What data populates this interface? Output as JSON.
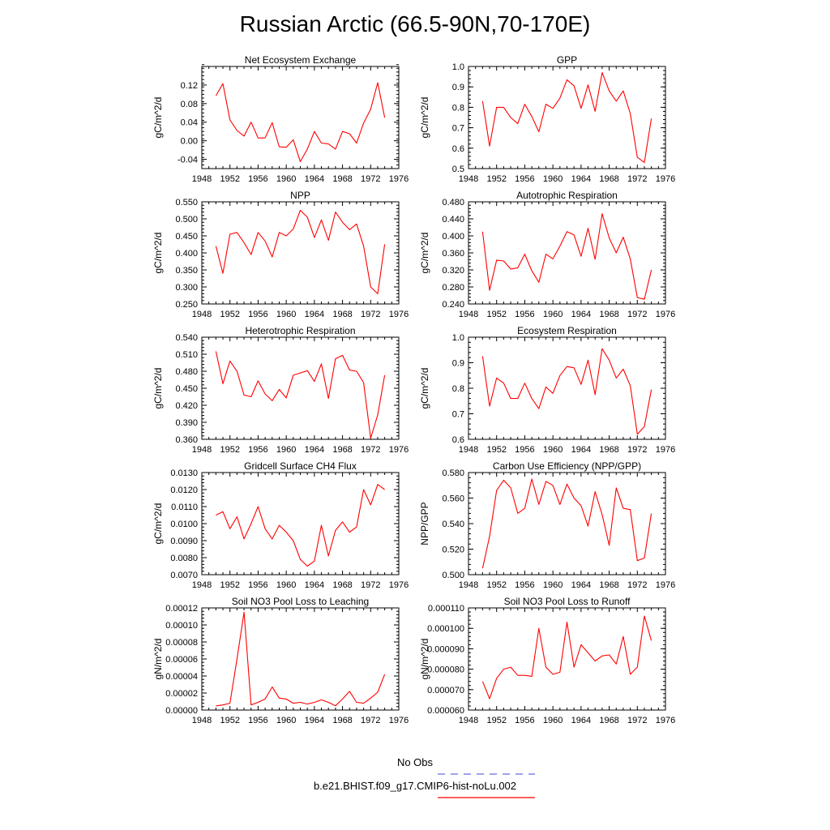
{
  "page": {
    "title": "Russian Arctic (66.5-90N,70-170E)"
  },
  "legend": {
    "entries": [
      {
        "label": "No Obs",
        "color": "#6a6adf",
        "dash": true
      },
      {
        "label": "b.e21.BHIST.f09_g17.CMIP6-hist-noLu.002",
        "color": "#ff0000",
        "dash": false
      }
    ]
  },
  "chart_data": [
    {
      "type": "line",
      "title": "Net Ecosystem Exchange",
      "ylabel": "gC/m^2/d",
      "xlim": [
        1948,
        1976
      ],
      "xticks": [
        "1948",
        "1952",
        "1956",
        "1960",
        "1964",
        "1968",
        "1972",
        "1976"
      ],
      "ylim": [
        -0.06,
        0.16
      ],
      "yticks": [
        "-0.04",
        "0.00",
        "0.04",
        "0.08",
        "0.12"
      ],
      "x": [
        1950,
        1951,
        1952,
        1953,
        1954,
        1955,
        1956,
        1957,
        1958,
        1959,
        1960,
        1961,
        1962,
        1963,
        1964,
        1965,
        1966,
        1967,
        1968,
        1969,
        1970,
        1971,
        1972,
        1973,
        1974
      ],
      "series": [
        {
          "color": "#ff0000",
          "values": [
            0.097,
            0.123,
            0.045,
            0.022,
            0.01,
            0.04,
            0.006,
            0.006,
            0.039,
            -0.013,
            -0.014,
            0.002,
            -0.045,
            -0.018,
            0.02,
            -0.005,
            -0.007,
            -0.018,
            0.02,
            0.015,
            -0.005,
            0.038,
            0.068,
            0.125,
            0.05
          ]
        }
      ]
    },
    {
      "type": "line",
      "title": "GPP",
      "ylabel": "gC/m^2/d",
      "xlim": [
        1948,
        1976
      ],
      "xticks": [
        "1948",
        "1952",
        "1956",
        "1960",
        "1964",
        "1968",
        "1972",
        "1976"
      ],
      "ylim": [
        0.5,
        1.0
      ],
      "yticks": [
        "0.5",
        "0.6",
        "0.7",
        "0.8",
        "0.9",
        "1.0"
      ],
      "x": [
        1950,
        1951,
        1952,
        1953,
        1954,
        1955,
        1956,
        1957,
        1958,
        1959,
        1960,
        1961,
        1962,
        1963,
        1964,
        1965,
        1966,
        1967,
        1968,
        1969,
        1970,
        1971,
        1972,
        1973,
        1974
      ],
      "series": [
        {
          "color": "#ff0000",
          "values": [
            0.83,
            0.61,
            0.8,
            0.8,
            0.75,
            0.72,
            0.815,
            0.755,
            0.68,
            0.815,
            0.795,
            0.845,
            0.935,
            0.905,
            0.795,
            0.91,
            0.78,
            0.97,
            0.88,
            0.83,
            0.88,
            0.77,
            0.555,
            0.53,
            0.745
          ]
        }
      ]
    },
    {
      "type": "line",
      "title": "NPP",
      "ylabel": "gC/m^2/d",
      "xlim": [
        1948,
        1976
      ],
      "xticks": [
        "1948",
        "1952",
        "1956",
        "1960",
        "1964",
        "1968",
        "1972",
        "1976"
      ],
      "ylim": [
        0.25,
        0.55
      ],
      "yticks": [
        "0.250",
        "0.300",
        "0.350",
        "0.400",
        "0.450",
        "0.500",
        "0.550"
      ],
      "x": [
        1950,
        1951,
        1952,
        1953,
        1954,
        1955,
        1956,
        1957,
        1958,
        1959,
        1960,
        1961,
        1962,
        1963,
        1964,
        1965,
        1966,
        1967,
        1968,
        1969,
        1970,
        1971,
        1972,
        1973,
        1974
      ],
      "series": [
        {
          "color": "#ff0000",
          "values": [
            0.42,
            0.34,
            0.455,
            0.46,
            0.43,
            0.395,
            0.46,
            0.435,
            0.388,
            0.46,
            0.45,
            0.47,
            0.525,
            0.505,
            0.445,
            0.497,
            0.437,
            0.52,
            0.49,
            0.468,
            0.485,
            0.42,
            0.3,
            0.28,
            0.425
          ]
        }
      ]
    },
    {
      "type": "line",
      "title": "Autotrophic Respiration",
      "ylabel": "gC/m^2/d",
      "xlim": [
        1948,
        1976
      ],
      "xticks": [
        "1948",
        "1952",
        "1956",
        "1960",
        "1964",
        "1968",
        "1972",
        "1976"
      ],
      "ylim": [
        0.24,
        0.48
      ],
      "yticks": [
        "0.240",
        "0.280",
        "0.320",
        "0.360",
        "0.400",
        "0.440",
        "0.480"
      ],
      "x": [
        1950,
        1951,
        1952,
        1953,
        1954,
        1955,
        1956,
        1957,
        1958,
        1959,
        1960,
        1961,
        1962,
        1963,
        1964,
        1965,
        1966,
        1967,
        1968,
        1969,
        1970,
        1971,
        1972,
        1973,
        1974
      ],
      "series": [
        {
          "color": "#ff0000",
          "values": [
            0.41,
            0.272,
            0.343,
            0.341,
            0.322,
            0.325,
            0.357,
            0.318,
            0.291,
            0.357,
            0.346,
            0.376,
            0.41,
            0.402,
            0.352,
            0.418,
            0.345,
            0.452,
            0.395,
            0.36,
            0.397,
            0.346,
            0.255,
            0.251,
            0.32
          ]
        }
      ]
    },
    {
      "type": "line",
      "title": "Heterotrophic Respiration",
      "ylabel": "gC/m^2/d",
      "xlim": [
        1948,
        1976
      ],
      "xticks": [
        "1948",
        "1952",
        "1956",
        "1960",
        "1964",
        "1968",
        "1972",
        "1976"
      ],
      "ylim": [
        0.36,
        0.54
      ],
      "yticks": [
        "0.360",
        "0.390",
        "0.420",
        "0.450",
        "0.480",
        "0.510",
        "0.540"
      ],
      "x": [
        1950,
        1951,
        1952,
        1953,
        1954,
        1955,
        1956,
        1957,
        1958,
        1959,
        1960,
        1961,
        1962,
        1963,
        1964,
        1965,
        1966,
        1967,
        1968,
        1969,
        1970,
        1971,
        1972,
        1973,
        1974
      ],
      "series": [
        {
          "color": "#ff0000",
          "values": [
            0.515,
            0.458,
            0.498,
            0.48,
            0.438,
            0.435,
            0.463,
            0.44,
            0.428,
            0.448,
            0.433,
            0.473,
            0.477,
            0.481,
            0.462,
            0.493,
            0.432,
            0.502,
            0.508,
            0.482,
            0.48,
            0.46,
            0.362,
            0.403,
            0.473
          ]
        }
      ]
    },
    {
      "type": "line",
      "title": "Ecosystem Respiration",
      "ylabel": "gC/m^2/d",
      "xlim": [
        1948,
        1976
      ],
      "xticks": [
        "1948",
        "1952",
        "1956",
        "1960",
        "1964",
        "1968",
        "1972",
        "1976"
      ],
      "ylim": [
        0.6,
        1.0
      ],
      "yticks": [
        "0.6",
        "0.7",
        "0.8",
        "0.9",
        "1.0"
      ],
      "x": [
        1950,
        1951,
        1952,
        1953,
        1954,
        1955,
        1956,
        1957,
        1958,
        1959,
        1960,
        1961,
        1962,
        1963,
        1964,
        1965,
        1966,
        1967,
        1968,
        1969,
        1970,
        1971,
        1972,
        1973,
        1974
      ],
      "series": [
        {
          "color": "#ff0000",
          "values": [
            0.925,
            0.73,
            0.84,
            0.82,
            0.76,
            0.76,
            0.82,
            0.76,
            0.72,
            0.805,
            0.78,
            0.85,
            0.885,
            0.88,
            0.815,
            0.91,
            0.775,
            0.955,
            0.91,
            0.84,
            0.875,
            0.81,
            0.62,
            0.65,
            0.795
          ]
        }
      ]
    },
    {
      "type": "line",
      "title": "Gridcell Surface CH4 Flux",
      "ylabel": "gC/m^2/d",
      "xlim": [
        1948,
        1976
      ],
      "xticks": [
        "1948",
        "1952",
        "1956",
        "1960",
        "1964",
        "1968",
        "1972",
        "1976"
      ],
      "ylim": [
        0.007,
        0.013
      ],
      "yticks": [
        "0.0070",
        "0.0080",
        "0.0090",
        "0.0100",
        "0.0110",
        "0.0120",
        "0.0130"
      ],
      "x": [
        1950,
        1951,
        1952,
        1953,
        1954,
        1955,
        1956,
        1957,
        1958,
        1959,
        1960,
        1961,
        1962,
        1963,
        1964,
        1965,
        1966,
        1967,
        1968,
        1969,
        1970,
        1971,
        1972,
        1973,
        1974
      ],
      "series": [
        {
          "color": "#ff0000",
          "values": [
            0.0105,
            0.0107,
            0.0097,
            0.0104,
            0.0091,
            0.01,
            0.011,
            0.0097,
            0.0091,
            0.0099,
            0.0095,
            0.009,
            0.0079,
            0.0075,
            0.0078,
            0.0099,
            0.0081,
            0.0096,
            0.0101,
            0.0095,
            0.0098,
            0.012,
            0.0111,
            0.0123,
            0.012
          ]
        }
      ]
    },
    {
      "type": "line",
      "title": "Carbon Use Efficiency (NPP/GPP)",
      "ylabel": "NPP/GPP",
      "xlim": [
        1948,
        1976
      ],
      "xticks": [
        "1948",
        "1952",
        "1956",
        "1960",
        "1964",
        "1968",
        "1972",
        "1976"
      ],
      "ylim": [
        0.5,
        0.58
      ],
      "yticks": [
        "0.500",
        "0.520",
        "0.540",
        "0.560",
        "0.580"
      ],
      "x": [
        1950,
        1951,
        1952,
        1953,
        1954,
        1955,
        1956,
        1957,
        1958,
        1959,
        1960,
        1961,
        1962,
        1963,
        1964,
        1965,
        1966,
        1967,
        1968,
        1969,
        1970,
        1971,
        1972,
        1973,
        1974
      ],
      "series": [
        {
          "color": "#ff0000",
          "values": [
            0.505,
            0.53,
            0.566,
            0.574,
            0.568,
            0.548,
            0.552,
            0.575,
            0.555,
            0.573,
            0.57,
            0.555,
            0.571,
            0.56,
            0.554,
            0.538,
            0.565,
            0.547,
            0.523,
            0.568,
            0.552,
            0.551,
            0.511,
            0.513,
            0.548
          ]
        }
      ]
    },
    {
      "type": "line",
      "title": "Soil NO3 Pool Loss to Leaching",
      "ylabel": "gN/m^2/d",
      "xlim": [
        1948,
        1976
      ],
      "xticks": [
        "1948",
        "1952",
        "1956",
        "1960",
        "1964",
        "1968",
        "1972",
        "1976"
      ],
      "ylim": [
        0,
        0.00012
      ],
      "yticks": [
        "0.00000",
        "0.00002",
        "0.00004",
        "0.00006",
        "0.00008",
        "0.00010",
        "0.00012"
      ],
      "x": [
        1950,
        1951,
        1952,
        1953,
        1954,
        1955,
        1956,
        1957,
        1958,
        1959,
        1960,
        1961,
        1962,
        1963,
        1964,
        1965,
        1966,
        1967,
        1968,
        1969,
        1970,
        1971,
        1972,
        1973,
        1974
      ],
      "series": [
        {
          "color": "#ff0000",
          "values": [
            5e-06,
            6e-06,
            8e-06,
            6e-05,
            0.000115,
            6e-06,
            9e-06,
            1.3e-05,
            2.7e-05,
            1.4e-05,
            1.3e-05,
            8e-06,
            9e-06,
            7e-06,
            9e-06,
            1.2e-05,
            9e-06,
            5e-06,
            1.3e-05,
            2.2e-05,
            9e-06,
            8e-06,
            1.4e-05,
            2.1e-05,
            4.2e-05
          ]
        }
      ]
    },
    {
      "type": "line",
      "title": "Soil NO3 Pool Loss to Runoff",
      "ylabel": "gN/m^2/d",
      "xlim": [
        1948,
        1976
      ],
      "xticks": [
        "1948",
        "1952",
        "1956",
        "1960",
        "1964",
        "1968",
        "1972",
        "1976"
      ],
      "ylim": [
        6e-05,
        0.00011
      ],
      "yticks": [
        "0.000060",
        "0.000070",
        "0.000080",
        "0.000090",
        "0.000100",
        "0.000110"
      ],
      "x": [
        1950,
        1951,
        1952,
        1953,
        1954,
        1955,
        1956,
        1957,
        1958,
        1959,
        1960,
        1961,
        1962,
        1963,
        1964,
        1965,
        1966,
        1967,
        1968,
        1969,
        1970,
        1971,
        1972,
        1973,
        1974
      ],
      "series": [
        {
          "color": "#ff0000",
          "values": [
            7.4e-05,
            6.55e-05,
            7.55e-05,
            8e-05,
            8.1e-05,
            7.7e-05,
            7.7e-05,
            7.65e-05,
            0.0001,
            8.1e-05,
            7.75e-05,
            7.85e-05,
            0.000103,
            8.1e-05,
            9.2e-05,
            8.8e-05,
            8.4e-05,
            8.65e-05,
            8.7e-05,
            8.25e-05,
            9.6e-05,
            7.75e-05,
            8.1e-05,
            0.000106,
            9.4e-05
          ]
        }
      ]
    }
  ]
}
